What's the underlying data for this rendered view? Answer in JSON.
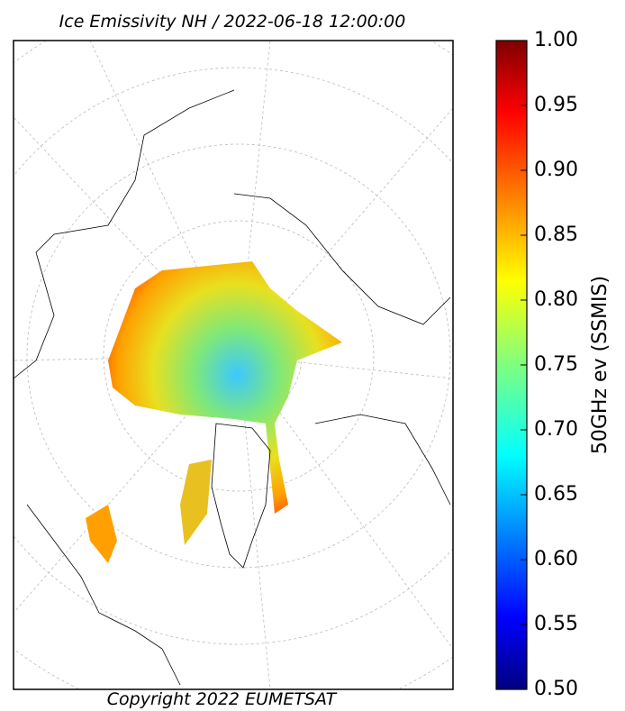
{
  "title": "Ice Emissivity NH / 2022-06-18 12:00:00",
  "copyright": "Copyright 2022 EUMETSAT",
  "colorbar": {
    "label": "50GHz ev (SSMIS)",
    "range": [
      0.5,
      1.0
    ],
    "ticks": [
      {
        "value": 0.5,
        "label": "0.50"
      },
      {
        "value": 0.55,
        "label": "0.55"
      },
      {
        "value": 0.6,
        "label": "0.60"
      },
      {
        "value": 0.65,
        "label": "0.65"
      },
      {
        "value": 0.7,
        "label": "0.70"
      },
      {
        "value": 0.75,
        "label": "0.75"
      },
      {
        "value": 0.8,
        "label": "0.80"
      },
      {
        "value": 0.85,
        "label": "0.85"
      },
      {
        "value": 0.9,
        "label": "0.90"
      },
      {
        "value": 0.95,
        "label": "0.95"
      },
      {
        "value": 1.0,
        "label": "1.00"
      }
    ]
  }
}
